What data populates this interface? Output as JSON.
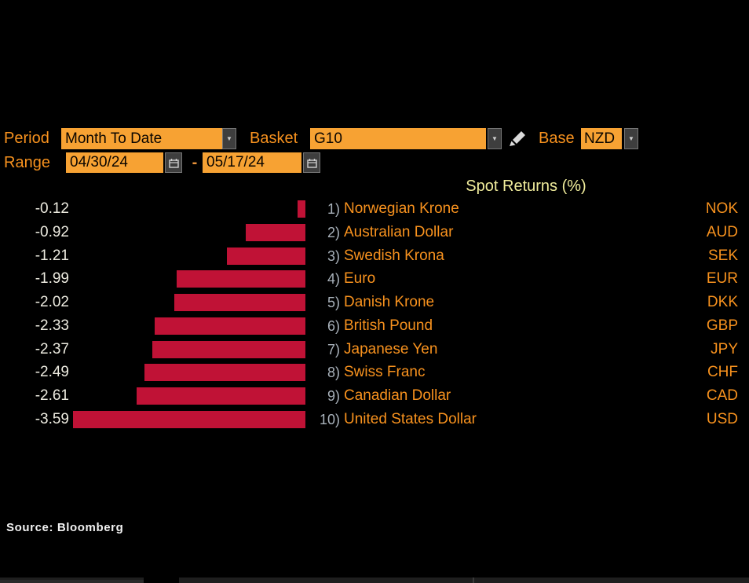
{
  "controls": {
    "period_label": "Period",
    "period_value": "Month To Date",
    "basket_label": "Basket",
    "basket_value": "G10",
    "base_label": "Base",
    "base_value": "NZD",
    "range_label": "Range",
    "range_start": "04/30/24",
    "range_separator": "-",
    "range_end": "05/17/24"
  },
  "icons": {
    "dropdown_arrow_glyph": "▼",
    "period_dropdown": "chevron-down-icon",
    "basket_dropdown": "chevron-down-icon",
    "base_dropdown": "chevron-down-icon",
    "basket_edit": "pencil-icon",
    "range_start_picker": "calendar-icon",
    "range_end_picker": "calendar-icon"
  },
  "chart_data": {
    "type": "bar",
    "orientation": "horizontal",
    "title": "Spot Returns (%)",
    "xlabel": "",
    "ylabel": "",
    "xlim": [
      -3.59,
      0
    ],
    "grid": false,
    "bar_color": "#C01236",
    "rows": [
      {
        "rank": "1)",
        "name": "Norwegian Krone",
        "code": "NOK",
        "value": -0.12,
        "value_label": "-0.12"
      },
      {
        "rank": "2)",
        "name": "Australian Dollar",
        "code": "AUD",
        "value": -0.92,
        "value_label": "-0.92"
      },
      {
        "rank": "3)",
        "name": "Swedish Krona",
        "code": "SEK",
        "value": -1.21,
        "value_label": "-1.21"
      },
      {
        "rank": "4)",
        "name": "Euro",
        "code": "EUR",
        "value": -1.99,
        "value_label": "-1.99"
      },
      {
        "rank": "5)",
        "name": "Danish Krone",
        "code": "DKK",
        "value": -2.02,
        "value_label": "-2.02"
      },
      {
        "rank": "6)",
        "name": "British Pound",
        "code": "GBP",
        "value": -2.33,
        "value_label": "-2.33"
      },
      {
        "rank": "7)",
        "name": "Japanese Yen",
        "code": "JPY",
        "value": -2.37,
        "value_label": "-2.37"
      },
      {
        "rank": "8)",
        "name": "Swiss Franc",
        "code": "CHF",
        "value": -2.49,
        "value_label": "-2.49"
      },
      {
        "rank": "9)",
        "name": "Canadian Dollar",
        "code": "CAD",
        "value": -2.61,
        "value_label": "-2.61"
      },
      {
        "rank": "10)",
        "name": "United States Dollar",
        "code": "USD",
        "value": -3.59,
        "value_label": "-3.59"
      }
    ]
  },
  "footer": {
    "source": "Source: Bloomberg"
  },
  "colors": {
    "background": "#000000",
    "field_background": "#F7A233",
    "accent_orange_text": "#F8921E",
    "bar_red": "#C01236",
    "title_yellow": "#F1ED9C",
    "value_white": "#EDEBE0",
    "rank_gray": "#A9B2BB",
    "button_gray": "#3E3E3E"
  }
}
